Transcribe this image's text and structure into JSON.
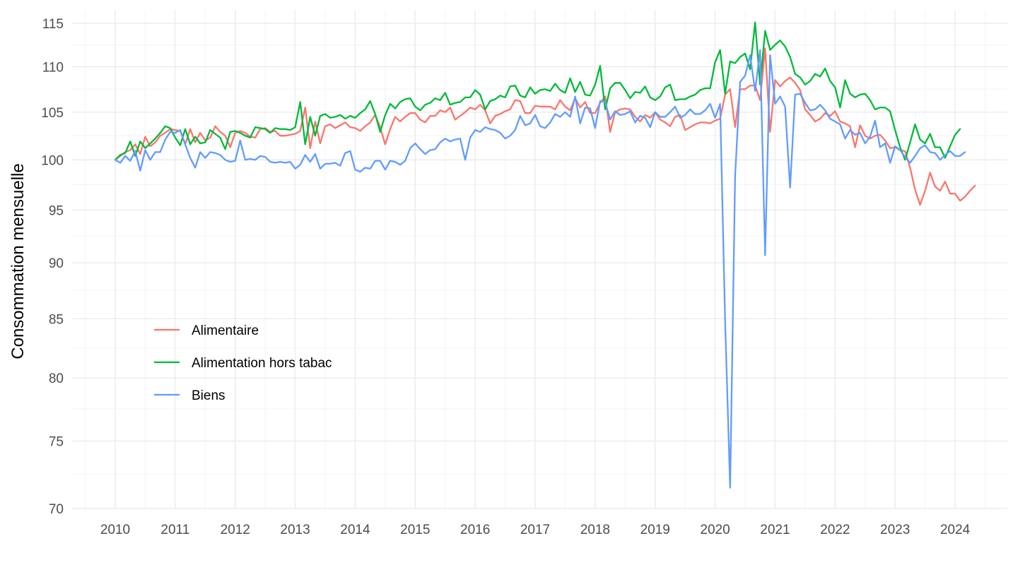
{
  "chart_data": {
    "type": "line",
    "title": "",
    "xlabel": "",
    "ylabel": "Consommation mensuelle",
    "y_scale": "log",
    "ylim": [
      70,
      116.5
    ],
    "xlim": [
      "2009-07-01",
      "2024-11-01"
    ],
    "y_ticks": [
      70,
      75,
      80,
      85,
      90,
      95,
      100,
      105,
      110,
      115
    ],
    "x_ticks": [
      "2010",
      "2011",
      "2012",
      "2013",
      "2014",
      "2015",
      "2016",
      "2017",
      "2018",
      "2019",
      "2020",
      "2021",
      "2022",
      "2023",
      "2024"
    ],
    "grid": true,
    "legend_position": "inside-left",
    "start": "2010-01",
    "frequency": "monthly",
    "series": [
      {
        "name": "Alimentaire",
        "color": "#F8766D",
        "values": [
          100.0,
          100.4,
          100.8,
          101.0,
          101.6,
          100.6,
          102.4,
          101.4,
          101.8,
          102.5,
          102.8,
          103.2,
          103.1,
          103.0,
          101.6,
          103.2,
          101.8,
          102.8,
          102.0,
          102.3,
          103.5,
          102.9,
          102.5,
          101.3,
          102.8,
          103.0,
          102.8,
          102.4,
          102.3,
          103.2,
          103.3,
          102.9,
          103.0,
          102.5,
          102.5,
          102.6,
          102.7,
          103.0,
          105.5,
          101.2,
          104.0,
          101.7,
          103.5,
          103.7,
          103.3,
          103.6,
          103.9,
          103.4,
          103.3,
          103.0,
          103.5,
          103.9,
          104.7,
          103.4,
          101.6,
          103.2,
          104.5,
          104.0,
          104.5,
          104.9,
          104.9,
          104.2,
          103.9,
          104.6,
          104.6,
          105.2,
          105.0,
          105.5,
          104.2,
          104.6,
          105.0,
          105.5,
          105.3,
          105.8,
          105.2,
          103.8,
          104.6,
          104.8,
          105.1,
          105.3,
          106.3,
          106.2,
          104.9,
          104.9,
          105.7,
          105.6,
          105.6,
          105.6,
          105.3,
          106.3,
          105.6,
          105.2,
          106.5,
          105.5,
          106.1,
          104.9,
          104.9,
          106.0,
          106.7,
          102.9,
          105.0,
          105.3,
          105.4,
          105.3,
          104.5,
          104.0,
          104.7,
          104.4,
          105.0,
          104.2,
          103.9,
          103.5,
          104.5,
          104.7,
          103.1,
          103.4,
          103.7,
          103.9,
          103.9,
          103.8,
          104.1,
          104.3,
          106.9,
          107.5,
          103.4,
          107.5,
          107.5,
          107.9,
          107.9,
          106.3,
          112.1,
          102.9,
          108.5,
          107.8,
          108.4,
          108.8,
          108.2,
          107.4,
          105.3,
          104.7,
          104.0,
          104.3,
          104.9,
          104.6,
          105.1,
          104.0,
          103.8,
          103.5,
          101.3,
          103.6,
          102.5,
          102.2,
          102.5,
          102.6,
          102.0,
          101.2,
          101.3,
          101.0,
          100.9,
          99.2,
          97.0,
          95.5,
          96.9,
          98.7,
          97.3,
          96.9,
          97.8,
          96.6,
          96.6,
          95.9,
          96.3,
          96.9,
          97.4
        ]
      },
      {
        "name": "Alimentation hors tabac",
        "color": "#00BA38",
        "values": [
          100.0,
          100.5,
          100.7,
          101.9,
          100.4,
          101.9,
          101.2,
          101.7,
          102.2,
          102.8,
          103.5,
          103.3,
          102.3,
          101.5,
          103.2,
          101.6,
          102.4,
          101.7,
          101.8,
          103.1,
          102.7,
          102.3,
          101.1,
          102.9,
          103.0,
          102.8,
          102.5,
          102.3,
          103.4,
          103.3,
          103.2,
          102.8,
          103.3,
          103.2,
          103.2,
          103.1,
          103.4,
          106.1,
          101.6,
          104.5,
          102.5,
          104.6,
          104.8,
          104.4,
          104.5,
          104.7,
          104.3,
          104.6,
          104.4,
          104.9,
          105.3,
          106.2,
          104.8,
          102.9,
          104.7,
          105.9,
          105.4,
          106.1,
          106.4,
          106.5,
          105.6,
          105.2,
          105.8,
          106.0,
          106.5,
          106.3,
          107.1,
          105.8,
          106.0,
          106.1,
          106.6,
          106.6,
          107.4,
          106.9,
          105.3,
          106.2,
          106.4,
          106.8,
          106.6,
          107.8,
          107.9,
          106.8,
          106.6,
          107.7,
          107.0,
          107.4,
          107.5,
          107.3,
          108.1,
          107.4,
          107.1,
          108.7,
          107.2,
          108.3,
          106.9,
          106.8,
          108.0,
          110.1,
          105.3,
          107.6,
          108.2,
          108.2,
          107.4,
          106.5,
          107.2,
          107.1,
          107.8,
          106.6,
          106.3,
          106.7,
          107.7,
          108.0,
          106.3,
          106.4,
          106.4,
          106.7,
          106.9,
          107.4,
          107.6,
          107.6,
          110.5,
          111.9,
          107.0,
          110.6,
          110.4,
          111.1,
          111.5,
          109.7,
          115.1,
          108.0,
          114.1,
          111.9,
          112.5,
          113.0,
          112.3,
          111.1,
          109.2,
          108.8,
          108.0,
          108.4,
          109.2,
          108.9,
          109.8,
          108.4,
          107.7,
          105.5,
          108.5,
          107.0,
          106.6,
          106.9,
          107.0,
          106.3,
          105.3,
          105.5,
          105.5,
          105.1,
          103.1,
          101.3,
          100.0,
          101.8,
          103.7,
          102.1,
          101.7,
          102.7,
          101.3,
          101.3,
          100.2,
          101.4,
          102.6,
          103.2
        ]
      },
      {
        "name": "Biens",
        "color": "#619CFF",
        "values": [
          100.0,
          99.7,
          100.4,
          99.9,
          100.9,
          98.9,
          101.0,
          100.0,
          100.8,
          100.8,
          102.1,
          102.9,
          102.8,
          103.1,
          101.6,
          100.2,
          99.2,
          100.8,
          100.2,
          100.8,
          100.7,
          100.5,
          100.0,
          99.8,
          99.9,
          102.0,
          100.0,
          100.1,
          100.0,
          100.4,
          100.3,
          99.8,
          99.7,
          99.8,
          99.7,
          99.8,
          99.1,
          99.5,
          100.5,
          99.8,
          100.6,
          99.1,
          99.6,
          99.6,
          99.7,
          99.4,
          100.7,
          100.9,
          99.0,
          98.8,
          99.2,
          99.1,
          99.9,
          99.9,
          99.0,
          99.9,
          99.8,
          99.5,
          99.9,
          101.2,
          101.7,
          101.1,
          100.6,
          101.0,
          101.1,
          101.8,
          102.2,
          101.9,
          102.1,
          102.2,
          100.0,
          102.3,
          103.1,
          102.9,
          103.4,
          103.2,
          103.1,
          102.8,
          102.2,
          102.5,
          103.1,
          104.6,
          103.6,
          103.8,
          104.7,
          103.5,
          103.3,
          103.9,
          104.8,
          104.5,
          105.0,
          104.5,
          106.7,
          103.8,
          105.5,
          105.4,
          103.3,
          106.2,
          106.1,
          104.2,
          105.1,
          104.7,
          104.8,
          105.1,
          103.9,
          104.6,
          104.4,
          103.4,
          105.0,
          104.5,
          104.5,
          105.0,
          105.6,
          104.4,
          104.7,
          105.3,
          104.8,
          104.8,
          105.2,
          105.9,
          104.4,
          105.9,
          84.8,
          71.5,
          98.4,
          108.3,
          109.0,
          111.3,
          107.3,
          111.9,
          90.7,
          111.3,
          105.9,
          106.7,
          105.6,
          97.2,
          106.9,
          107.0,
          106.0,
          105.2,
          105.3,
          105.8,
          105.2,
          104.3,
          104.0,
          103.7,
          102.2,
          103.1,
          102.6,
          102.8,
          101.7,
          102.4,
          104.1,
          101.3,
          101.7,
          99.7,
          101.4,
          101.0,
          100.3,
          99.7,
          100.4,
          101.2,
          101.5,
          100.8,
          100.7,
          100.0,
          100.5,
          100.9,
          100.4,
          100.4,
          100.8
        ]
      }
    ]
  }
}
